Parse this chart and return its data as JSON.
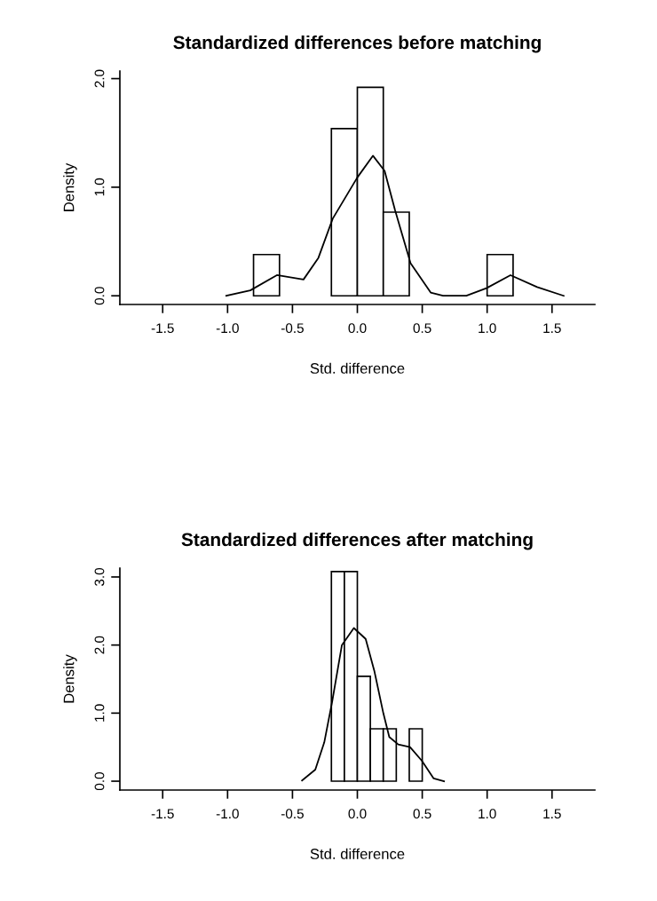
{
  "chart_data": [
    {
      "type": "histogram",
      "title": "Standardized differences before matching",
      "xlabel": "Std. difference",
      "ylabel": "Density",
      "bins": [
        -0.8,
        -0.6,
        -0.4,
        -0.2,
        0.0,
        0.2,
        0.4,
        0.6,
        0.8,
        1.0,
        1.2
      ],
      "values": [
        0.38,
        0.0,
        0.0,
        1.54,
        1.92,
        0.77,
        0.0,
        0.0,
        0.0,
        0.38
      ],
      "color": "#ffffff",
      "series": [
        {
          "type": "line",
          "color": "#000000",
          "x": [
            -1.01,
            -0.825,
            -0.62,
            -0.415,
            -0.3,
            -0.19,
            0.0,
            0.12,
            0.21,
            0.29,
            0.41,
            0.565,
            0.66,
            0.84,
            0.995,
            1.18,
            1.385,
            1.59
          ],
          "values": [
            0.0,
            0.05,
            0.19,
            0.15,
            0.35,
            0.71,
            1.09,
            1.29,
            1.15,
            0.79,
            0.3,
            0.03,
            0.0,
            0.0,
            0.07,
            0.19,
            0.08,
            0.0
          ]
        }
      ],
      "xlim": [
        -1.83,
        1.83
      ],
      "ylim": [
        -0.08,
        2.07
      ],
      "xticks": [
        -1.5,
        {
          "value": -1.0,
          "label": "-1.0"
        },
        -0.5,
        {
          "value": 0.0,
          "label": "0.0"
        },
        0.5,
        {
          "value": 1.0,
          "label": "1.0"
        },
        1.5
      ],
      "yticks": [
        {
          "value": 0,
          "label": "0.0"
        },
        {
          "value": 1,
          "label": "1.0"
        },
        {
          "value": 2,
          "label": "2.0"
        }
      ]
    },
    {
      "type": "histogram",
      "title": "Standardized differences after matching",
      "xlabel": "Std. difference",
      "ylabel": "Density",
      "bins": [
        -0.2,
        -0.1,
        0.0,
        0.1,
        0.2,
        0.3,
        0.4,
        0.5
      ],
      "values": [
        3.08,
        3.08,
        1.54,
        0.77,
        0.77,
        0.0,
        0.77
      ],
      "color": "#ffffff",
      "series": [
        {
          "type": "line",
          "color": "#000000",
          "x": [
            -0.426,
            -0.324,
            -0.255,
            -0.194,
            -0.119,
            -0.027,
            0.064,
            0.132,
            0.2,
            0.246,
            0.315,
            0.406,
            0.497,
            0.588,
            0.668
          ],
          "values": [
            0.01,
            0.17,
            0.57,
            1.17,
            2.0,
            2.25,
            2.09,
            1.61,
            1.0,
            0.65,
            0.54,
            0.5,
            0.3,
            0.04,
            0.0
          ]
        }
      ],
      "xlim": [
        -1.83,
        1.83
      ],
      "ylim": [
        -0.13,
        3.13
      ],
      "xticks": [
        -1.5,
        {
          "value": -1.0,
          "label": "-1.0"
        },
        -0.5,
        {
          "value": 0.0,
          "label": "0.0"
        },
        0.5,
        {
          "value": 1.0,
          "label": "1.0"
        },
        1.5
      ],
      "yticks": [
        {
          "value": 0,
          "label": "0.0"
        },
        {
          "value": 1,
          "label": "1.0"
        },
        {
          "value": 2,
          "label": "2.0"
        },
        {
          "value": 3,
          "label": "3.0"
        }
      ]
    }
  ]
}
